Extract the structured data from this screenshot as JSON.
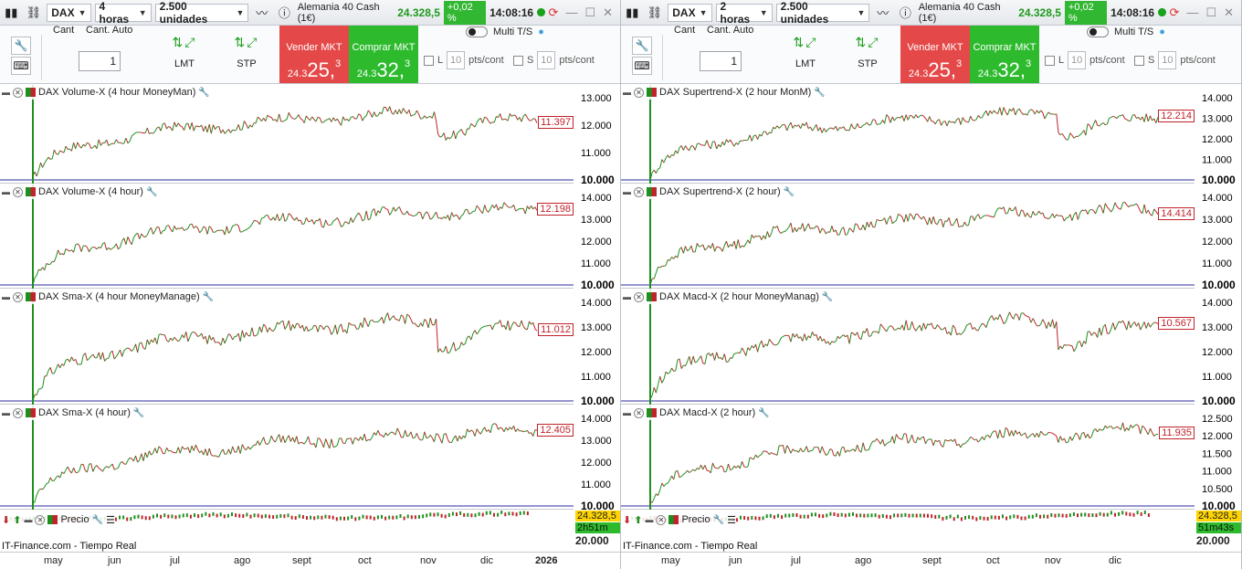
{
  "windows": [
    {
      "id": "left",
      "symbol": "DAX",
      "timeframe": "4 horas",
      "units": "2.500 unidades",
      "instrument": "Alemania 40 Cash (1€)",
      "price": "24.328,5",
      "change": "+0,02 %",
      "clock": "14:08:16",
      "qty_label": "Cant",
      "auto_label": "Cant. Auto",
      "qty_value": "1",
      "lmt": "LMT",
      "stp": "STP",
      "sell_header": "Vender",
      "buy_header": "Comprar",
      "sell_label": "Vender MKT",
      "buy_label": "Comprar MKT",
      "sell_prefix": "24.3",
      "sell_big": "25,",
      "sell_sup": "3",
      "buy_prefix": "24.3",
      "buy_big": "32,",
      "buy_sup": "3",
      "multi_label": "Multi T/S",
      "l_label": "L",
      "s_label": "S",
      "pts_value": "10",
      "pts_label": "pts/cont",
      "panels": [
        {
          "title": "DAX Volume-X (4 hour MoneyMan)",
          "last": "11.397",
          "ticks": [
            "13.000",
            "12.000",
            "11.000",
            "10.000"
          ]
        },
        {
          "title": "DAX Volume-X (4 hour)",
          "last": "12.198",
          "ticks": [
            "14.000",
            "13.000",
            "12.000",
            "11.000",
            "10.000"
          ]
        },
        {
          "title": "DAX Sma-X (4 hour MoneyManage)",
          "last": "11.012",
          "ticks": [
            "14.000",
            "13.000",
            "12.000",
            "11.000",
            "10.000"
          ]
        },
        {
          "title": "DAX Sma-X (4 hour)",
          "last": "12.405",
          "ticks": [
            "14.000",
            "13.000",
            "12.000",
            "11.000",
            "10.000"
          ]
        }
      ],
      "price_panel": {
        "title": "Precio",
        "last": "24.328,5",
        "countdown": "2h51m",
        "tick": "20.000"
      },
      "source": "IT-Finance.com - Tiempo Real",
      "x_labels": [
        "may",
        "jun",
        "jul",
        "ago",
        "sept",
        "oct",
        "nov",
        "dic",
        "2026"
      ]
    },
    {
      "id": "right",
      "symbol": "DAX",
      "timeframe": "2 horas",
      "units": "2.500 unidades",
      "instrument": "Alemania 40 Cash (1€)",
      "price": "24.328,5",
      "change": "+0,02 %",
      "clock": "14:08:16",
      "qty_label": "Cant",
      "auto_label": "Cant. Auto",
      "qty_value": "1",
      "lmt": "LMT",
      "stp": "STP",
      "sell_header": "Vender",
      "buy_header": "Comprar",
      "sell_label": "Vender MKT",
      "buy_label": "Comprar MKT",
      "sell_prefix": "24.3",
      "sell_big": "25,",
      "sell_sup": "3",
      "buy_prefix": "24.3",
      "buy_big": "32,",
      "buy_sup": "3",
      "multi_label": "Multi T/S",
      "l_label": "L",
      "s_label": "S",
      "pts_value": "10",
      "pts_label": "pts/cont",
      "panels": [
        {
          "title": "DAX Supertrend-X (2 hour MonM)",
          "last": "12.214",
          "ticks": [
            "14.000",
            "13.000",
            "12.000",
            "11.000",
            "10.000"
          ]
        },
        {
          "title": "DAX Supertrend-X (2 hour)",
          "last": "14.414",
          "ticks": [
            "14.000",
            "13.000",
            "12.000",
            "11.000",
            "10.000"
          ]
        },
        {
          "title": "DAX Macd-X (2 hour MoneyManag)",
          "last": "10.567",
          "ticks": [
            "14.000",
            "13.000",
            "12.000",
            "11.000",
            "10.000"
          ]
        },
        {
          "title": "DAX Macd-X (2 hour)",
          "last": "11.935",
          "ticks": [
            "12.500",
            "12.000",
            "11.500",
            "11.000",
            "10.500",
            "10.000"
          ]
        }
      ],
      "price_panel": {
        "title": "Precio",
        "last": "24.328,5",
        "countdown": "51m43s",
        "tick": "20.000"
      },
      "source": "IT-Finance.com - Tiempo Real",
      "x_labels": [
        "may",
        "jun",
        "jul",
        "ago",
        "sept",
        "oct",
        "nov",
        "dic"
      ]
    }
  ],
  "colors": {
    "up": "#1e8f1e",
    "down": "#c0232a",
    "sell": "#e54848",
    "buy": "#2dbb2d",
    "baseline": "#2b2ba0"
  }
}
